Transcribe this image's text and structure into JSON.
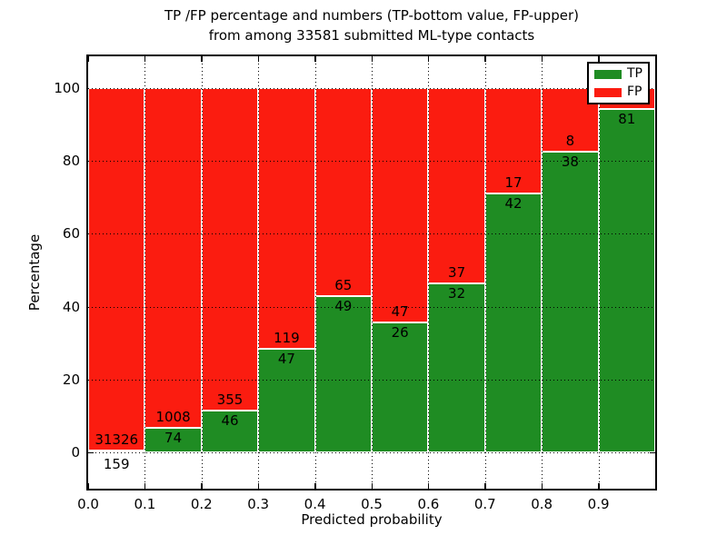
{
  "chart_data": {
    "type": "bar",
    "stacked": true,
    "normalized_to_percent": true,
    "title_line1": "TP /FP percentage and numbers (TP-bottom value, FP-upper)",
    "title_line2": "from among 33581 submitted ML-type contacts",
    "xlabel": "Predicted probability",
    "ylabel": "Percentage",
    "total_contacts": 33581,
    "bin_start_values": [
      0.0,
      0.1,
      0.2,
      0.3,
      0.4,
      0.5,
      0.6,
      0.7,
      0.8,
      0.9
    ],
    "bin_width": 0.1,
    "x_tick_labels": [
      "0.0",
      "0.1",
      "0.2",
      "0.3",
      "0.4",
      "0.5",
      "0.6",
      "0.7",
      "0.8",
      "0.9"
    ],
    "y_tick_values": [
      0,
      20,
      40,
      60,
      80,
      100
    ],
    "xlim": [
      0.0,
      1.0
    ],
    "ylim": [
      -10,
      109
    ],
    "grid": true,
    "series": [
      {
        "name": "TP",
        "color": "#1f8c23",
        "values": [
          159,
          74,
          46,
          47,
          49,
          26,
          32,
          42,
          38,
          81
        ]
      },
      {
        "name": "FP",
        "color": "#fb1c10",
        "values": [
          31326,
          1008,
          355,
          119,
          65,
          47,
          37,
          17,
          8,
          5
        ]
      }
    ],
    "bar_edge_color": "#ffffff",
    "grid_color": "#000000",
    "legend": {
      "position": "upper right",
      "items": [
        {
          "label": "TP",
          "color": "#1f8c23"
        },
        {
          "label": "FP",
          "color": "#fb1c10"
        }
      ]
    }
  }
}
